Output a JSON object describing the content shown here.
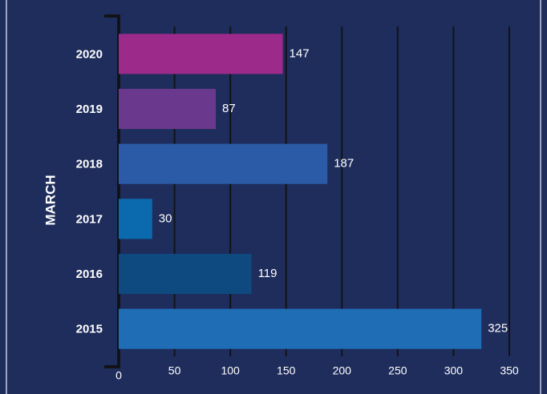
{
  "chart_data": {
    "type": "barh",
    "y_label": "MARCH",
    "categories": [
      "2020",
      "2019",
      "2018",
      "2017",
      "2016",
      "2015"
    ],
    "values": [
      147,
      87,
      187,
      30,
      119,
      325
    ],
    "colors": [
      "#9b2a8a",
      "#6a388c",
      "#2b5aa6",
      "#0b6aad",
      "#0e4a80",
      "#1f6db5"
    ],
    "xlim": [
      0,
      350
    ],
    "xticks": [
      0,
      50,
      100,
      150,
      200,
      250,
      300,
      350
    ],
    "grid": true
  }
}
